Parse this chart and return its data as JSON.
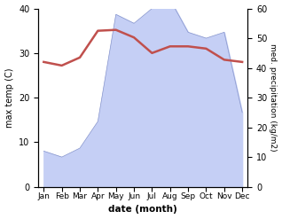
{
  "months": [
    "Jan",
    "Feb",
    "Mar",
    "Apr",
    "May",
    "Jun",
    "Jul",
    "Aug",
    "Sep",
    "Oct",
    "Nov",
    "Dec"
  ],
  "temperature": [
    28,
    27.2,
    29,
    35,
    35.2,
    33.5,
    30,
    31.5,
    31.5,
    31,
    28.5,
    28
  ],
  "precipitation": [
    12,
    10,
    13,
    22,
    58,
    55,
    60,
    63,
    52,
    50,
    52,
    25
  ],
  "temp_color": "#c0504d",
  "precip_color_fill": "#c5cff5",
  "precip_color_line": "#8896cc",
  "xlabel": "date (month)",
  "ylabel_left": "max temp (C)",
  "ylabel_right": "med. precipitation (kg/m2)",
  "ylim_left": [
    0,
    40
  ],
  "ylim_right": [
    0,
    60
  ],
  "yticks_left": [
    0,
    10,
    20,
    30,
    40
  ],
  "yticks_right": [
    0,
    10,
    20,
    30,
    40,
    50,
    60
  ],
  "background_color": "#ffffff",
  "temp_linewidth": 1.8,
  "precip_linewidth": 0.5
}
